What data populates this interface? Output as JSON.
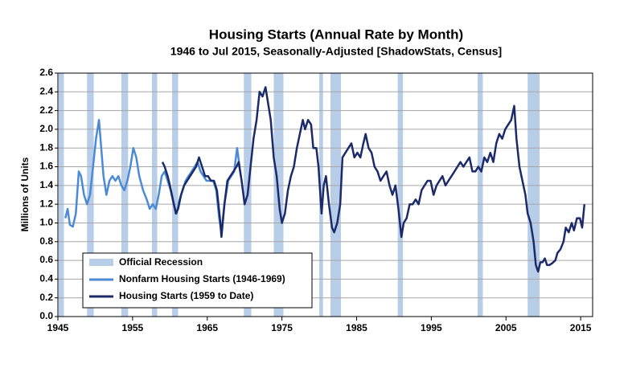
{
  "chart_data": {
    "type": "line",
    "title": "Housing Starts (Annual Rate by Month)",
    "subtitle": "1946 to Jul 2015, Seasonally-Adjusted [ShadowStats, Census]",
    "y_label": "Millions of Units",
    "xlim": [
      1945,
      2016.6
    ],
    "xticks": [
      1945,
      1955,
      1965,
      1975,
      1985,
      1995,
      2005,
      2015
    ],
    "ylim": [
      0,
      2.6
    ],
    "yticks": [
      {
        "value": 0,
        "label": "0.0"
      },
      0.2,
      0.4,
      0.6,
      0.8,
      {
        "value": 1,
        "label": "1.0"
      },
      1.2,
      1.4,
      1.6,
      1.8,
      {
        "value": 2,
        "label": "2.0"
      },
      2.2,
      2.4,
      2.6
    ],
    "grid": true,
    "legend": "lower left",
    "recession_label": "Official Recession",
    "recession_color": "#b8cde8",
    "recessions": [
      [
        1945.1,
        1945.8
      ],
      [
        1948.9,
        1949.8
      ],
      [
        1953.5,
        1954.4
      ],
      [
        1957.6,
        1958.3
      ],
      [
        1960.3,
        1961.1
      ],
      [
        1969.9,
        1970.9
      ],
      [
        1973.9,
        1975.2
      ],
      [
        1980.0,
        1980.5
      ],
      [
        1981.5,
        1982.9
      ],
      [
        1990.5,
        1991.2
      ],
      [
        2001.2,
        2001.9
      ],
      [
        2007.9,
        2009.5
      ]
    ],
    "series": [
      {
        "name": "Nonfarm Housing Starts (1946-1969)",
        "color": "#4a8ad6",
        "x": [
          1946.0,
          1946.3,
          1946.6,
          1947.0,
          1947.4,
          1947.8,
          1948.1,
          1948.5,
          1948.9,
          1949.3,
          1949.7,
          1950.1,
          1950.5,
          1950.8,
          1951.1,
          1951.5,
          1951.9,
          1952.3,
          1952.7,
          1953.1,
          1953.5,
          1953.9,
          1954.3,
          1954.7,
          1955.1,
          1955.5,
          1955.9,
          1956.4,
          1956.9,
          1957.3,
          1957.7,
          1958.1,
          1958.5,
          1958.9,
          1959.3,
          1959.7,
          1960.1,
          1960.5,
          1960.9,
          1961.3,
          1961.7,
          1962.1,
          1962.5,
          1962.9,
          1963.3,
          1963.7,
          1964.1,
          1964.5,
          1964.9,
          1965.3,
          1965.8,
          1966.2,
          1966.6,
          1966.9,
          1967.3,
          1967.8,
          1968.2,
          1968.6,
          1969.0,
          1969.5
        ],
        "values": [
          1.05,
          1.15,
          0.98,
          0.96,
          1.1,
          1.55,
          1.5,
          1.3,
          1.2,
          1.3,
          1.6,
          1.9,
          2.1,
          1.8,
          1.5,
          1.3,
          1.45,
          1.5,
          1.45,
          1.5,
          1.4,
          1.35,
          1.45,
          1.6,
          1.8,
          1.7,
          1.5,
          1.35,
          1.25,
          1.15,
          1.2,
          1.15,
          1.3,
          1.5,
          1.55,
          1.45,
          1.35,
          1.2,
          1.1,
          1.25,
          1.35,
          1.45,
          1.5,
          1.55,
          1.6,
          1.65,
          1.55,
          1.5,
          1.45,
          1.45,
          1.45,
          1.35,
          1.05,
          0.9,
          1.2,
          1.45,
          1.5,
          1.55,
          1.8,
          1.5
        ]
      },
      {
        "name": "Housing Starts (1959 to Date)",
        "color": "#1b2a6b",
        "x": [
          1959.0,
          1959.3,
          1959.7,
          1960.0,
          1960.4,
          1960.8,
          1961.1,
          1961.5,
          1961.9,
          1962.3,
          1962.7,
          1963.1,
          1963.5,
          1963.9,
          1964.3,
          1964.7,
          1965.1,
          1965.5,
          1965.9,
          1966.3,
          1966.7,
          1966.9,
          1967.3,
          1967.7,
          1968.1,
          1968.5,
          1968.9,
          1969.2,
          1969.6,
          1970.0,
          1970.4,
          1970.8,
          1971.2,
          1971.6,
          1972.0,
          1972.4,
          1972.8,
          1973.1,
          1973.5,
          1973.9,
          1974.3,
          1974.7,
          1975.0,
          1975.4,
          1975.8,
          1976.2,
          1976.6,
          1977.0,
          1977.4,
          1977.8,
          1978.1,
          1978.5,
          1978.9,
          1979.2,
          1979.6,
          1979.9,
          1980.3,
          1980.6,
          1980.9,
          1981.3,
          1981.7,
          1982.0,
          1982.4,
          1982.8,
          1983.1,
          1983.5,
          1983.9,
          1984.3,
          1984.7,
          1985.1,
          1985.5,
          1985.9,
          1986.2,
          1986.6,
          1987.0,
          1987.4,
          1987.8,
          1988.2,
          1988.6,
          1989.0,
          1989.4,
          1989.8,
          1990.2,
          1990.6,
          1991.0,
          1991.3,
          1991.7,
          1992.1,
          1992.5,
          1992.9,
          1993.3,
          1993.7,
          1994.1,
          1994.5,
          1994.9,
          1995.3,
          1995.7,
          1996.1,
          1996.5,
          1996.9,
          1997.3,
          1997.7,
          1998.1,
          1998.5,
          1998.9,
          1999.3,
          1999.7,
          2000.1,
          2000.5,
          2000.9,
          2001.3,
          2001.7,
          2002.1,
          2002.5,
          2002.9,
          2003.3,
          2003.7,
          2004.1,
          2004.5,
          2004.9,
          2005.3,
          2005.7,
          2006.1,
          2006.4,
          2006.8,
          2007.2,
          2007.6,
          2007.9,
          2008.3,
          2008.7,
          2009.0,
          2009.3,
          2009.6,
          2009.9,
          2010.2,
          2010.5,
          2010.8,
          2011.2,
          2011.6,
          2011.9,
          2012.3,
          2012.7,
          2013.0,
          2013.4,
          2013.8,
          2014.1,
          2014.5,
          2014.9,
          2015.2,
          2015.5
        ],
        "values": [
          1.65,
          1.6,
          1.5,
          1.4,
          1.25,
          1.1,
          1.15,
          1.3,
          1.4,
          1.45,
          1.5,
          1.55,
          1.6,
          1.7,
          1.6,
          1.5,
          1.5,
          1.45,
          1.45,
          1.35,
          1.05,
          0.85,
          1.2,
          1.45,
          1.5,
          1.55,
          1.6,
          1.65,
          1.45,
          1.2,
          1.3,
          1.6,
          1.9,
          2.1,
          2.4,
          2.35,
          2.45,
          2.3,
          2.1,
          1.7,
          1.5,
          1.15,
          1.0,
          1.1,
          1.35,
          1.5,
          1.6,
          1.8,
          1.95,
          2.1,
          2.0,
          2.1,
          2.05,
          1.8,
          1.8,
          1.6,
          1.1,
          1.4,
          1.5,
          1.2,
          0.95,
          0.9,
          1.0,
          1.2,
          1.7,
          1.75,
          1.8,
          1.85,
          1.7,
          1.75,
          1.7,
          1.85,
          1.95,
          1.8,
          1.75,
          1.6,
          1.55,
          1.45,
          1.5,
          1.55,
          1.4,
          1.3,
          1.4,
          1.15,
          0.85,
          1.0,
          1.05,
          1.2,
          1.2,
          1.25,
          1.2,
          1.35,
          1.4,
          1.45,
          1.45,
          1.3,
          1.4,
          1.45,
          1.5,
          1.4,
          1.45,
          1.5,
          1.55,
          1.6,
          1.65,
          1.6,
          1.65,
          1.7,
          1.55,
          1.55,
          1.6,
          1.55,
          1.7,
          1.65,
          1.75,
          1.65,
          1.85,
          1.95,
          1.9,
          2.0,
          2.05,
          2.1,
          2.25,
          1.9,
          1.6,
          1.45,
          1.3,
          1.1,
          1.0,
          0.8,
          0.55,
          0.48,
          0.58,
          0.58,
          0.62,
          0.55,
          0.55,
          0.57,
          0.6,
          0.68,
          0.72,
          0.8,
          0.95,
          0.9,
          1.0,
          0.92,
          1.05,
          1.05,
          0.95,
          1.2
        ]
      }
    ]
  }
}
